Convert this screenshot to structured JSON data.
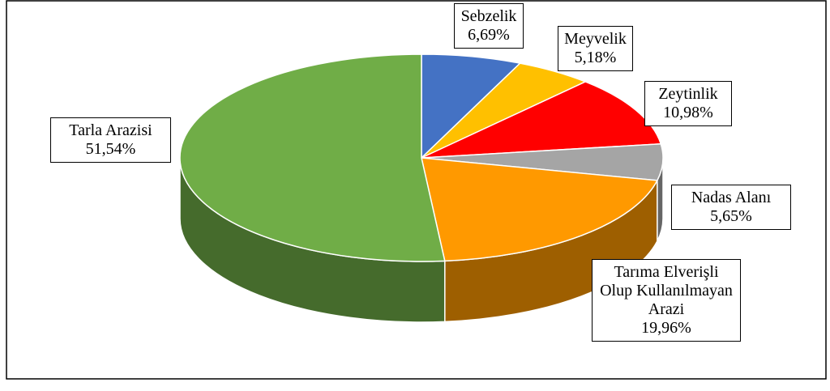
{
  "chart_data": {
    "type": "pie",
    "categories": [
      "Sebzelik",
      "Meyvelik",
      "Zeytinlik",
      "Nadas Alanı",
      "Tarıma Elverişli Olup Kullanılmayan Arazi",
      "Tarla Arazisi"
    ],
    "values": [
      6.69,
      5.18,
      10.98,
      5.65,
      19.96,
      51.54
    ],
    "value_labels": [
      "6,69%",
      "5,18%",
      "10,98%",
      "5,65%",
      "19,96%",
      "51,54%"
    ],
    "colors": [
      "#4472c4",
      "#ffc000",
      "#ff0000",
      "#a5a5a5",
      "#ff9900",
      "#70ad47"
    ]
  }
}
